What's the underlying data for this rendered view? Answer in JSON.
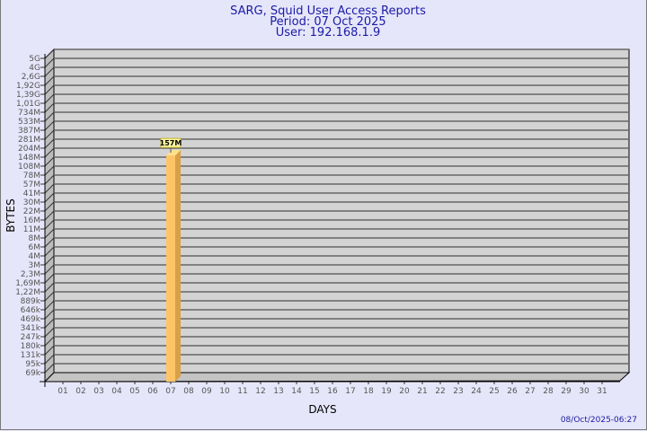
{
  "chart_data": {
    "type": "bar",
    "title": "SARG, Squid User Access Reports",
    "subtitle_lines": [
      "Period: 07 Oct 2025",
      "User: 192.168.1.9"
    ],
    "xlabel": "DAYS",
    "ylabel": "BYTES",
    "y_scale": "log",
    "y_tick_labels": [
      "5G",
      "4G",
      "2,6G",
      "1,92G",
      "1,39G",
      "1,01G",
      "734M",
      "533M",
      "387M",
      "281M",
      "204M",
      "148M",
      "108M",
      "78M",
      "57M",
      "41M",
      "30M",
      "22M",
      "16M",
      "11M",
      "8M",
      "6M",
      "4M",
      "3M",
      "2,3M",
      "1,69M",
      "1,22M",
      "889k",
      "646k",
      "469k",
      "341k",
      "247k",
      "180k",
      "131k",
      "95k",
      "69k"
    ],
    "categories": [
      "01",
      "02",
      "03",
      "04",
      "05",
      "06",
      "07",
      "08",
      "09",
      "10",
      "11",
      "12",
      "13",
      "14",
      "15",
      "16",
      "17",
      "18",
      "19",
      "20",
      "21",
      "22",
      "23",
      "24",
      "25",
      "26",
      "27",
      "28",
      "29",
      "30",
      "31"
    ],
    "values": [
      null,
      null,
      null,
      null,
      null,
      null,
      157000000,
      null,
      null,
      null,
      null,
      null,
      null,
      null,
      null,
      null,
      null,
      null,
      null,
      null,
      null,
      null,
      null,
      null,
      null,
      null,
      null,
      null,
      null,
      null,
      null
    ],
    "data_labels": {
      "07": "157M"
    },
    "grid": true,
    "colors": {
      "bar": "#ffc466",
      "bar_side": "#d9a04a",
      "plot_bg": "#d3d3d3",
      "label_bg": "#fff8a0",
      "title": "#1a1aa6"
    }
  },
  "footer": {
    "timestamp": "08/Oct/2025-06:27"
  }
}
